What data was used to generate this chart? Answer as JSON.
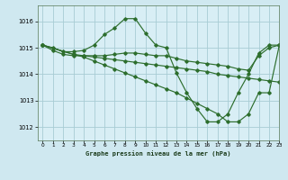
{
  "title": "Graphe pression niveau de la mer (hPa)",
  "background_color": "#cfe8f0",
  "plot_bg_color": "#d8eef5",
  "grid_color": "#a8ccd4",
  "line_color": "#2d6e2d",
  "xlim": [
    -0.5,
    23
  ],
  "ylim": [
    1011.5,
    1016.6
  ],
  "xticks": [
    0,
    1,
    2,
    3,
    4,
    5,
    6,
    7,
    8,
    9,
    10,
    11,
    12,
    13,
    14,
    15,
    16,
    17,
    18,
    19,
    20,
    21,
    22,
    23
  ],
  "yticks": [
    1012,
    1013,
    1014,
    1015,
    1016
  ],
  "line1_x": [
    0,
    1,
    2,
    3,
    4,
    5,
    6,
    7,
    8,
    9,
    10,
    11,
    12,
    13,
    14,
    15,
    16,
    17,
    18,
    19,
    20,
    21,
    22,
    23
  ],
  "line1_y": [
    1015.1,
    1015.0,
    1014.85,
    1014.85,
    1014.9,
    1015.1,
    1015.5,
    1015.75,
    1016.1,
    1016.1,
    1015.55,
    1015.1,
    1015.0,
    1014.05,
    1013.3,
    1012.7,
    1012.2,
    1012.2,
    1012.5,
    1013.3,
    1014.0,
    1014.8,
    1015.1,
    1015.1
  ],
  "line2_x": [
    0,
    1,
    2,
    3,
    4,
    5,
    6,
    7,
    8,
    9,
    10,
    11,
    12,
    13,
    14,
    15,
    16,
    17,
    18,
    19,
    20,
    21,
    22,
    23
  ],
  "line2_y": [
    1015.1,
    1014.9,
    1014.75,
    1014.7,
    1014.7,
    1014.7,
    1014.7,
    1014.75,
    1014.8,
    1014.8,
    1014.75,
    1014.7,
    1014.7,
    1014.6,
    1014.5,
    1014.45,
    1014.4,
    1014.35,
    1014.3,
    1014.2,
    1014.15,
    1014.7,
    1015.0,
    1015.1
  ],
  "line3_x": [
    0,
    3,
    4,
    5,
    6,
    7,
    8,
    9,
    10,
    11,
    12,
    13,
    14,
    15,
    16,
    17,
    18,
    19,
    20,
    21,
    22,
    23
  ],
  "line3_y": [
    1015.1,
    1014.75,
    1014.7,
    1014.65,
    1014.6,
    1014.55,
    1014.5,
    1014.45,
    1014.4,
    1014.35,
    1014.3,
    1014.25,
    1014.2,
    1014.15,
    1014.1,
    1014.0,
    1013.95,
    1013.9,
    1013.85,
    1013.8,
    1013.75,
    1013.7
  ],
  "line4_x": [
    0,
    3,
    4,
    5,
    6,
    7,
    8,
    9,
    10,
    11,
    12,
    13,
    14,
    15,
    16,
    17,
    18,
    19,
    20,
    21,
    22,
    23
  ],
  "line4_y": [
    1015.1,
    1014.75,
    1014.65,
    1014.5,
    1014.35,
    1014.2,
    1014.05,
    1013.9,
    1013.75,
    1013.6,
    1013.45,
    1013.3,
    1013.1,
    1012.9,
    1012.7,
    1012.5,
    1012.2,
    1012.2,
    1012.5,
    1013.3,
    1013.3,
    1015.1
  ]
}
